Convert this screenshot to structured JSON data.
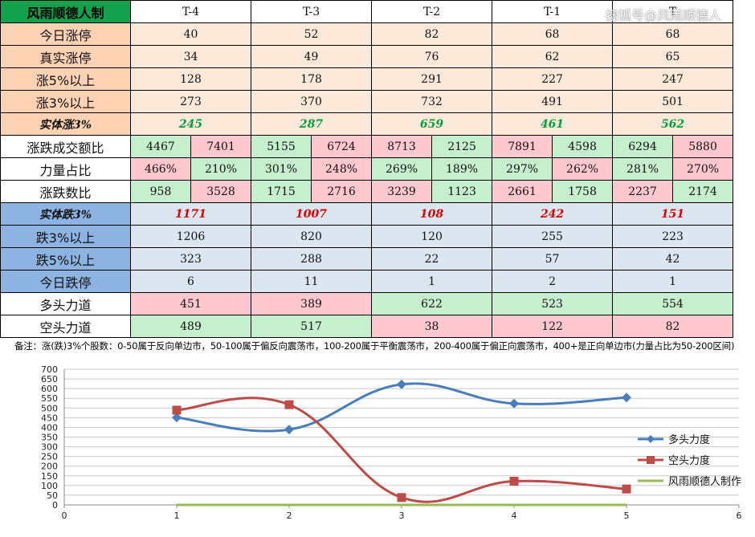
{
  "watermark": "搜狐号@风雨顺德人",
  "table": {
    "title": "风雨顺德人制",
    "headers": [
      "T-4",
      "T-3",
      "T-2",
      "T-1",
      "T"
    ],
    "rows_up": [
      {
        "label": "今日涨停",
        "values": [
          "40",
          "52",
          "82",
          "68",
          "68"
        ]
      },
      {
        "label": "真实涨停",
        "values": [
          "34",
          "49",
          "76",
          "62",
          "65"
        ]
      },
      {
        "label": "涨5%以上",
        "values": [
          "128",
          "178",
          "291",
          "227",
          "247"
        ]
      },
      {
        "label": "涨3%以上",
        "values": [
          "273",
          "370",
          "732",
          "491",
          "501"
        ]
      }
    ],
    "solid_up": {
      "label": "实体涨3%",
      "values": [
        "245",
        "287",
        "659",
        "461",
        "562"
      ]
    },
    "pair_rows": [
      {
        "label": "涨跌成交额比",
        "pairs": [
          [
            "4467",
            "7401"
          ],
          [
            "5155",
            "6724"
          ],
          [
            "8713",
            "2125"
          ],
          [
            "7891",
            "4598"
          ],
          [
            "6294",
            "5880"
          ]
        ]
      },
      {
        "label": "力量占比",
        "pairs": [
          [
            "466%",
            "210%"
          ],
          [
            "301%",
            "248%"
          ],
          [
            "269%",
            "189%"
          ],
          [
            "297%",
            "262%"
          ],
          [
            "281%",
            "270%"
          ]
        ]
      },
      {
        "label": "涨跌数比",
        "pairs": [
          [
            "958",
            "3528"
          ],
          [
            "1715",
            "2716"
          ],
          [
            "3239",
            "1123"
          ],
          [
            "2661",
            "1758"
          ],
          [
            "2237",
            "2174"
          ]
        ]
      }
    ],
    "solid_down": {
      "label": "实体跌3%",
      "values": [
        "1171",
        "1007",
        "108",
        "242",
        "151"
      ]
    },
    "rows_down": [
      {
        "label": "跌3%以上",
        "values": [
          "1206",
          "820",
          "120",
          "255",
          "223"
        ]
      },
      {
        "label": "跌5%以上",
        "values": [
          "323",
          "288",
          "22",
          "57",
          "42"
        ]
      },
      {
        "label": "今日跌停",
        "values": [
          "6",
          "11",
          "1",
          "2",
          "1"
        ]
      }
    ],
    "power_rows": [
      {
        "label": "多头力道",
        "values": [
          "451",
          "389",
          "622",
          "523",
          "554"
        ]
      },
      {
        "label": "空头力道",
        "values": [
          "489",
          "517",
          "38",
          "122",
          "82"
        ]
      }
    ]
  },
  "note": "备注：涨(跌)3%个股数：0-50属于反向单边市，50-100属于偏反向震荡市，100-200属于平衡震荡市，200-400属于偏正向震荡市，400+是正向单边市(力量占比为50-200区间)",
  "chart_data": {
    "type": "line",
    "x_ticks": [
      0,
      1,
      2,
      3,
      4,
      5,
      6
    ],
    "y_ticks": [
      0,
      50,
      100,
      150,
      200,
      250,
      300,
      350,
      400,
      450,
      500,
      550,
      600,
      650,
      700
    ],
    "xlim": [
      0,
      6
    ],
    "ylim": [
      0,
      700
    ],
    "grid": "horizontal",
    "legend_placement": "right",
    "series": [
      {
        "name": "多头力度",
        "color": "#4a7ebb",
        "marker": "diamond",
        "x": [
          1,
          2,
          3,
          4,
          5
        ],
        "values": [
          451,
          389,
          622,
          523,
          554
        ]
      },
      {
        "name": "空头力度",
        "color": "#be4b48",
        "marker": "square",
        "x": [
          1,
          2,
          3,
          4,
          5
        ],
        "values": [
          489,
          517,
          38,
          122,
          82
        ]
      },
      {
        "name": "风雨顺德人制作",
        "color": "#98b954",
        "marker": "none",
        "x": [
          1,
          2,
          3,
          4,
          5
        ],
        "values": [
          0,
          0,
          0,
          0,
          0
        ]
      }
    ]
  }
}
